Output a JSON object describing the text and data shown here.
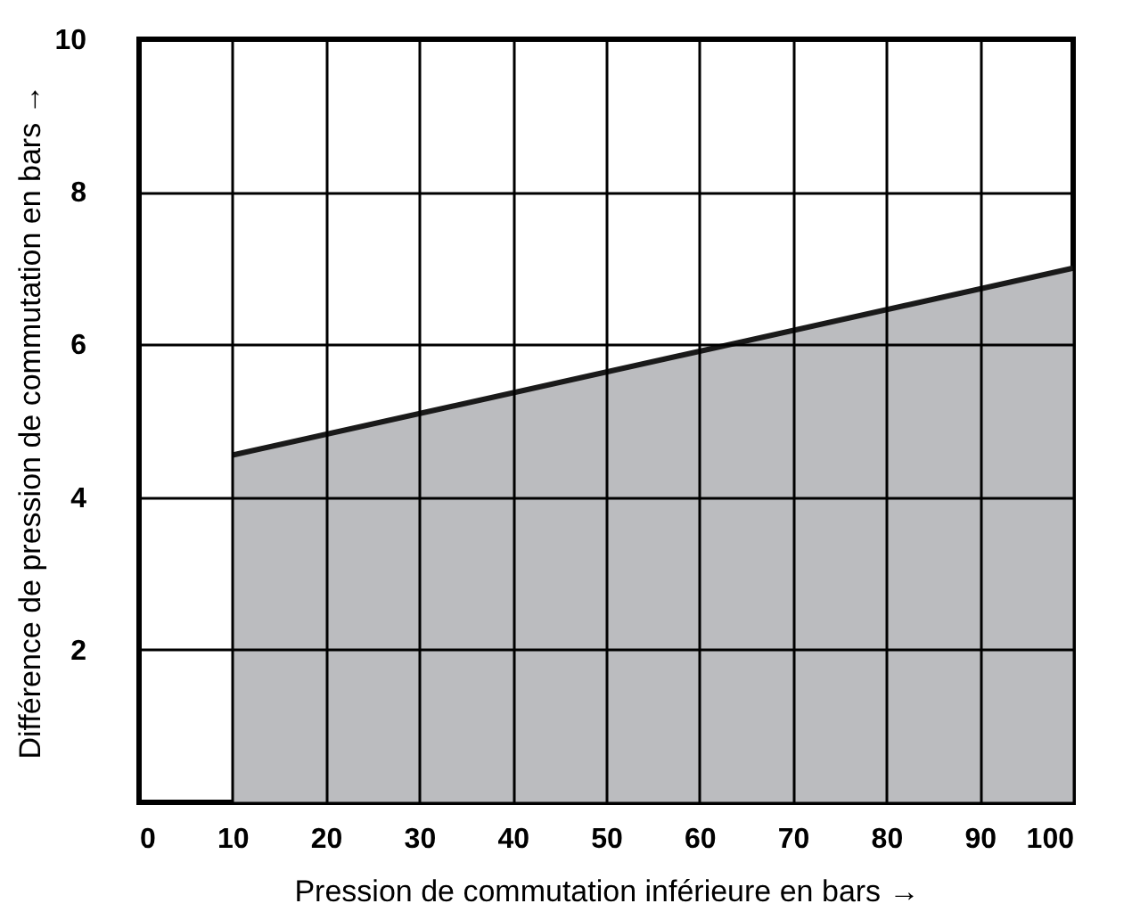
{
  "chart_data": {
    "type": "area",
    "xlabel": "Pression de commutation inférieure en bars →",
    "ylabel": "Différence de pression de commutation en bars →",
    "x": [
      10,
      100
    ],
    "series": [
      {
        "color": "#bbbcbf",
        "values": [
          4.55,
          7.0
        ]
      }
    ],
    "xlim": [
      0,
      100
    ],
    "xticks": [
      0,
      10,
      20,
      30,
      40,
      50,
      60,
      70,
      80,
      90,
      100
    ],
    "ylim": [
      0,
      10
    ],
    "yticks": [
      {
        "value": 0,
        "label": null
      },
      2,
      4,
      6,
      8,
      10
    ],
    "grid": true
  }
}
